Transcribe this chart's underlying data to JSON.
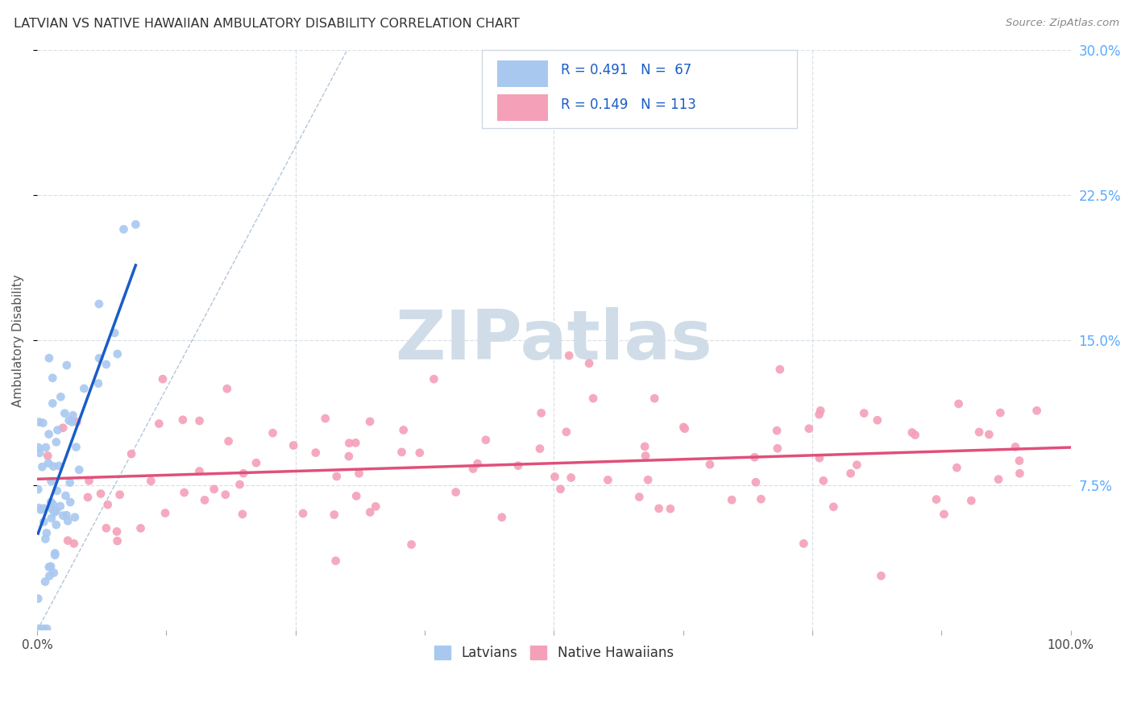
{
  "title": "LATVIAN VS NATIVE HAWAIIAN AMBULATORY DISABILITY CORRELATION CHART",
  "source": "Source: ZipAtlas.com",
  "ylabel": "Ambulatory Disability",
  "xlim": [
    0.0,
    1.0
  ],
  "ylim": [
    0.0,
    0.3
  ],
  "latvian_R": 0.491,
  "latvian_N": 67,
  "hawaiian_R": 0.149,
  "hawaiian_N": 113,
  "latvian_color": "#a8c8f0",
  "hawaiian_color": "#f4a0b8",
  "trendline_latvian_color": "#1a5cc8",
  "trendline_hawaiian_color": "#e0507a",
  "diagonal_color": "#a0b8d0",
  "watermark_text": "ZIPatlas",
  "watermark_color": "#d0dde8",
  "background_color": "#ffffff",
  "grid_color": "#d8e0e8",
  "right_tick_color": "#5aaaff",
  "title_color": "#333333",
  "source_color": "#888888",
  "legend_text_color": "#1a5cc8",
  "legend_N_color": "#1a5cc8",
  "legend_border_color": "#d0d8e0"
}
